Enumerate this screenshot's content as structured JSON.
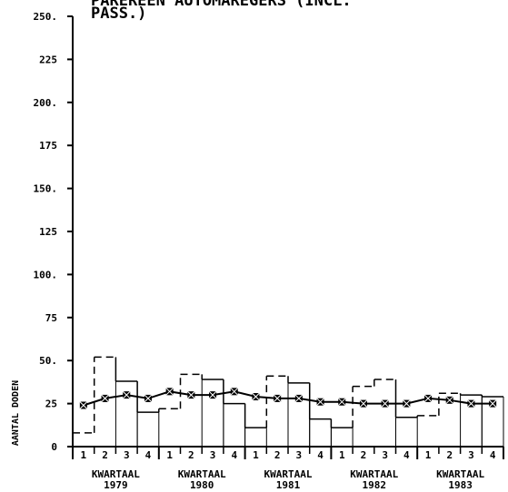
{
  "chart_data": {
    "type": "bar",
    "title_lines": [
      "PAREREEN AUTOMAREGERS (INCL.",
      "PASS.)"
    ],
    "ylabel": "AANTAL DODEN",
    "ylim": [
      0,
      250
    ],
    "yticks": [
      "0",
      "25",
      "50.",
      "75",
      "100.",
      "125",
      "150.",
      "175",
      "200.",
      "225",
      "250."
    ],
    "quarter_labels": [
      "1",
      "2",
      "3",
      "4",
      "1",
      "2",
      "3",
      "4",
      "1",
      "2",
      "3",
      "4",
      "1",
      "2",
      "3",
      "4",
      "1",
      "2",
      "3",
      "4"
    ],
    "year_groups": [
      {
        "label": "KWARTAAL",
        "year": "1979"
      },
      {
        "label": "KWARTAAL",
        "year": "1980"
      },
      {
        "label": "KWARTAAL",
        "year": "1981"
      },
      {
        "label": "KWARTAAL",
        "year": "1982"
      },
      {
        "label": "KWARTAAL",
        "year": "1983"
      }
    ],
    "series": [
      {
        "style": "step",
        "values": [
          8,
          52,
          38,
          20,
          22,
          42,
          39,
          25,
          11,
          41,
          37,
          16,
          11,
          35,
          39,
          17,
          18,
          31,
          30,
          29
        ]
      },
      {
        "style": "line-marker",
        "values": [
          24,
          28,
          30,
          28,
          32,
          30,
          30,
          32,
          29,
          28,
          28,
          26,
          26,
          25,
          25,
          25,
          28,
          27,
          25,
          25
        ]
      }
    ]
  }
}
